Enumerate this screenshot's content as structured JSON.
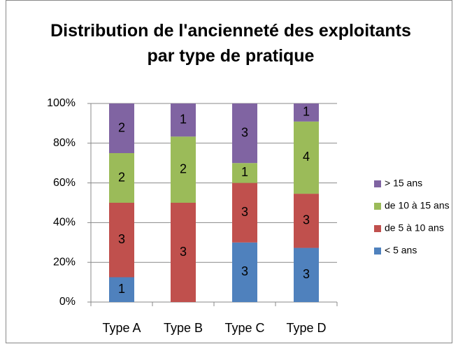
{
  "chart_data": {
    "type": "bar",
    "stacking": "percent",
    "title": "Distribution de l'ancienneté des exploitants par type de pratique",
    "categories": [
      "Type A",
      "Type B",
      "Type C",
      "Type D"
    ],
    "series": [
      {
        "name": "< 5 ans",
        "color": "#4f81bd",
        "values": [
          1,
          0,
          3,
          3
        ]
      },
      {
        "name": "de 5 à 10 ans",
        "color": "#c0504d",
        "values": [
          3,
          3,
          3,
          3
        ]
      },
      {
        "name": "de 10 à 15 ans",
        "color": "#9bbb59",
        "values": [
          2,
          2,
          1,
          4
        ]
      },
      {
        "name": "> 15 ans",
        "color": "#8064a2",
        "values": [
          2,
          1,
          3,
          1
        ]
      }
    ],
    "ylim": [
      0,
      100
    ],
    "yticks": [
      {
        "value": 0,
        "label": "0%"
      },
      {
        "value": 20,
        "label": "20%"
      },
      {
        "value": 40,
        "label": "40%"
      },
      {
        "value": 60,
        "label": "60%"
      },
      {
        "value": 80,
        "label": "80%"
      },
      {
        "value": 100,
        "label": "100%"
      }
    ],
    "grid": true,
    "legend": "right"
  }
}
